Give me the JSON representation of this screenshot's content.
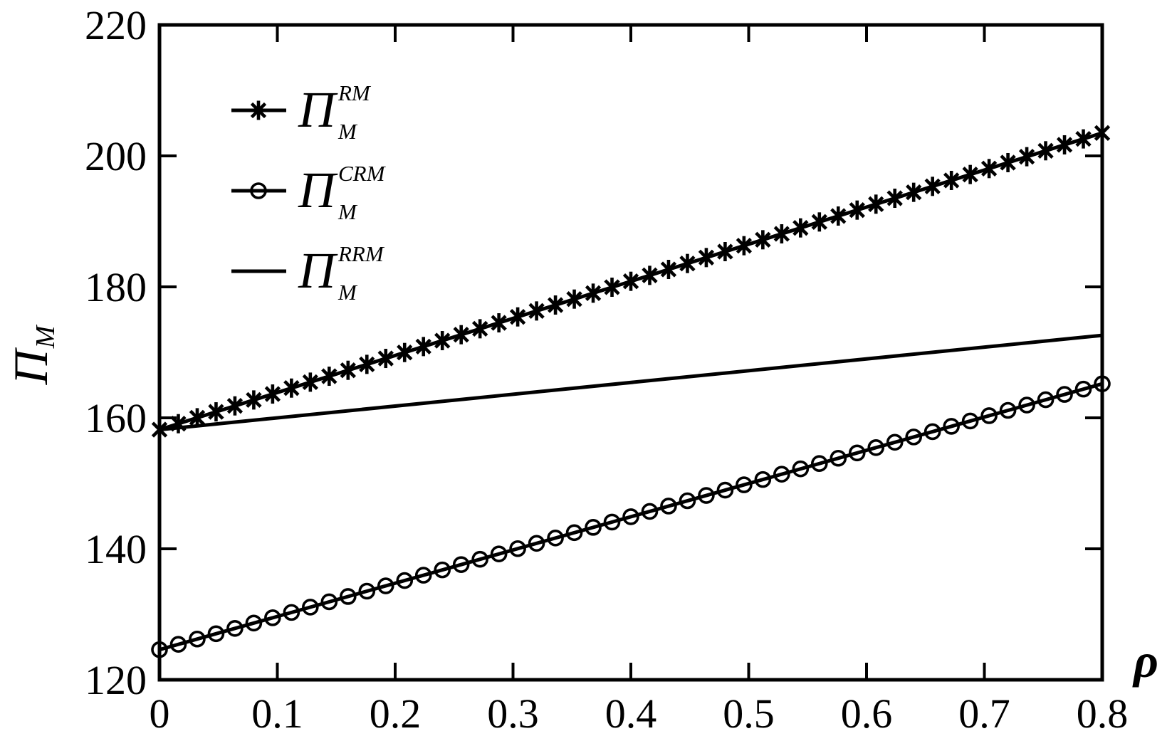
{
  "figure": {
    "background": "#ffffff",
    "foreground": "#000000"
  },
  "chart_data": {
    "type": "line",
    "title": "",
    "xlabel": "ρ",
    "ylabel": {
      "base": "Π",
      "sub": "M"
    },
    "xlim": [
      0,
      0.8
    ],
    "ylim": [
      120,
      220
    ],
    "grid": false,
    "legend_position": "upper-left",
    "legend_frame": false,
    "x_tick_labels": [
      "0",
      "0.1",
      "0.2",
      "0.3",
      "0.4",
      "0.5",
      "0.6",
      "0.7",
      "0.8"
    ],
    "x_ticks": [
      0,
      0.1,
      0.2,
      0.3,
      0.4,
      0.5,
      0.6,
      0.7,
      0.8
    ],
    "y_tick_labels": [
      "120",
      "140",
      "160",
      "180",
      "200",
      "220"
    ],
    "y_ticks": [
      120,
      140,
      160,
      180,
      200,
      220
    ],
    "x_sample": [
      0,
      0.1,
      0.2,
      0.3,
      0.4,
      0.5,
      0.6,
      0.7,
      0.8
    ],
    "series": [
      {
        "id": "rm",
        "label": {
          "base": "Π",
          "sub": "M",
          "sup": "RM"
        },
        "marker": "asterisk",
        "line_style": "solid",
        "color": "#000000",
        "x_start": 0,
        "x_end": 0.8,
        "y_start": 158.2,
        "y_end": 203.5,
        "n_markers": 51,
        "y_sample": [
          158.2,
          163.9,
          169.5,
          175.2,
          180.9,
          186.5,
          192.2,
          197.8,
          203.5
        ]
      },
      {
        "id": "crm",
        "label": {
          "base": "Π",
          "sub": "M",
          "sup": "CRM"
        },
        "marker": "circle",
        "line_style": "solid",
        "color": "#000000",
        "x_start": 0,
        "x_end": 0.8,
        "y_start": 124.6,
        "y_end": 165.2,
        "n_markers": 51,
        "y_sample": [
          124.6,
          129.7,
          134.8,
          139.8,
          144.9,
          150.0,
          155.1,
          160.1,
          165.2
        ]
      },
      {
        "id": "rrm",
        "label": {
          "base": "Π",
          "sub": "M",
          "sup": "RRM"
        },
        "marker": "none",
        "line_style": "solid",
        "color": "#000000",
        "x_start": 0,
        "x_end": 0.8,
        "y_start": 158.2,
        "y_end": 172.6,
        "n_markers": 0,
        "y_sample": [
          158.2,
          160.0,
          161.8,
          163.6,
          165.4,
          167.2,
          169.0,
          170.8,
          172.6
        ]
      }
    ]
  }
}
